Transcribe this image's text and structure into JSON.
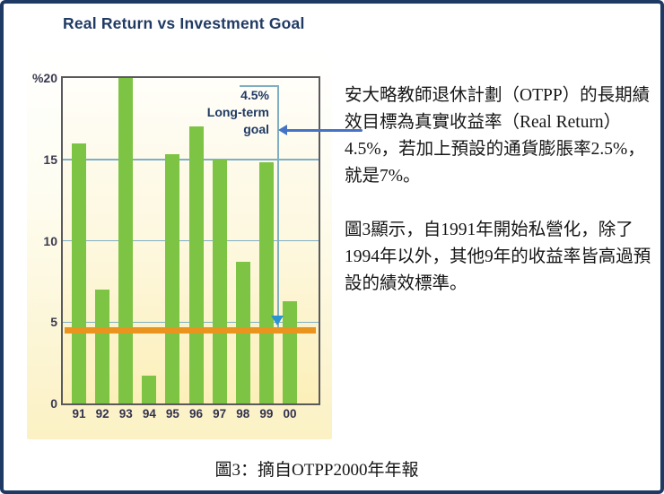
{
  "title": "Real Return vs Investment Goal",
  "colors": {
    "frame_border": "#1e3a64",
    "title": "#203a64",
    "bar_green": "#7dc344",
    "goal_orange": "#e8941f",
    "gridline_blue": "#7fafc4",
    "pointer_blue": "#4472c4",
    "drop_arrow_blue": "#2a93d2",
    "panel_yellow": "#fbf1c4",
    "axis_text": "#32324e"
  },
  "chart_data": {
    "type": "bar",
    "title": "Real Return vs Investment Goal",
    "categories": [
      "91",
      "92",
      "93",
      "94",
      "95",
      "96",
      "97",
      "98",
      "99",
      "00"
    ],
    "values": [
      16,
      7,
      20,
      1.7,
      15.3,
      17,
      15,
      8.7,
      14.8,
      6.3
    ],
    "unit": "%",
    "xlabel": "",
    "ylabel": "%",
    "ylim": [
      0,
      20
    ],
    "yticks": [
      {
        "label": "%20",
        "value": 20
      },
      {
        "label": "15",
        "value": 15
      },
      {
        "label": "10",
        "value": 10
      },
      {
        "label": "5",
        "value": 5
      },
      {
        "label": "0",
        "value": 0
      }
    ],
    "gridline_values": [
      15,
      10,
      5
    ],
    "grid": true,
    "bar_color": "#7dc344",
    "goal_line": {
      "value": 4.5,
      "label": "4.5% Long-term goal",
      "color": "#e8941f"
    }
  },
  "goal_annotation": {
    "line1": "4.5%",
    "line2": "Long-term",
    "line3": "goal"
  },
  "commentary": {
    "paragraph1": "安大略教師退休計劃（OTPP）的長期績效目標為真實收益率（Real Return）4.5%，若加上預設的通貨膨脹率2.5%，就是7%。",
    "paragraph2": "圖3顯示，自1991年開始私營化，除了1994年以外，其他9年的收益率皆高過預設的績效標準。"
  },
  "caption": "圖3：摘自OTPP2000年年報"
}
